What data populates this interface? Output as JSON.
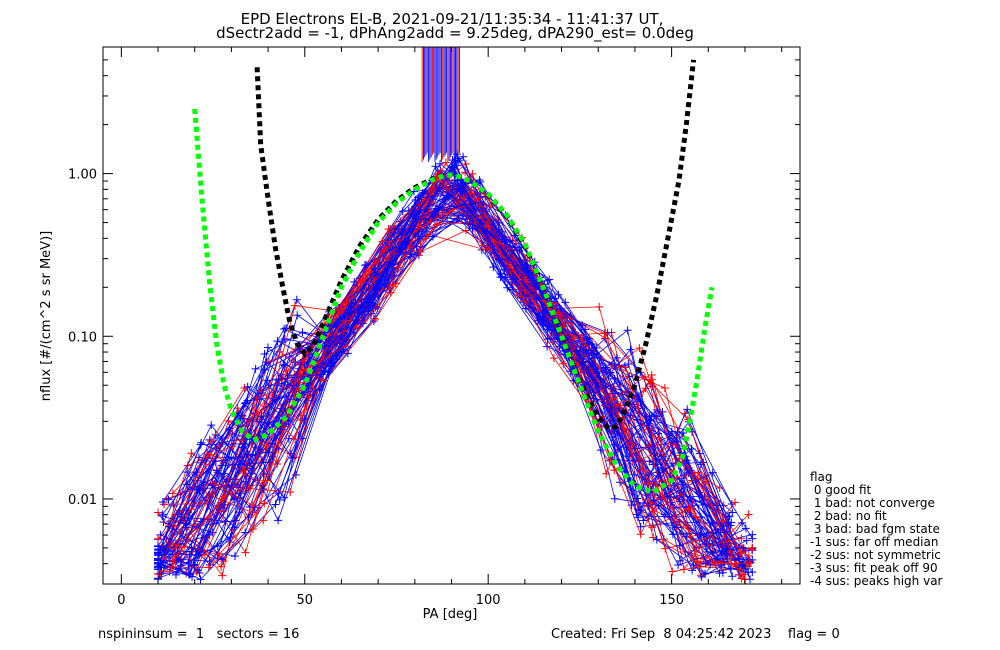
{
  "chart_data": {
    "type": "scatter",
    "title_line1": "EPD Electrons EL-B, 2021-09-21/11:35:34 - 11:41:37 UT,",
    "title_line2": "dSectr2add = -1, dPhAng2add = 9.25deg, dPA290_est=   0.0deg",
    "xlabel": "PA [deg]",
    "ylabel": "nflux [#/(cm^2 s sr MeV)]",
    "xlim": [
      -5,
      185
    ],
    "ylim": [
      0.003,
      6.0
    ],
    "yscale": "log",
    "xticks": [
      0,
      50,
      100,
      150
    ],
    "xtick_labels": [
      "0",
      "50",
      "100",
      "150"
    ],
    "yticks": [
      0.01,
      0.1,
      1.0
    ],
    "ytick_labels": [
      "0.01",
      "0.10",
      "1.00"
    ],
    "grid": false,
    "colors": {
      "red": "#ff0000",
      "blue": "#0000ff",
      "green": "#00ff00",
      "black": "#000000"
    },
    "series": [
      {
        "color": "#000000",
        "style": "dotted-thick",
        "x": [
          37,
          38,
          40,
          42,
          44,
          46,
          48,
          50,
          52,
          55,
          60,
          65,
          70,
          75,
          80,
          85,
          88,
          90,
          92,
          95,
          100,
          105,
          110,
          115,
          120,
          125,
          130,
          133,
          135,
          137,
          140,
          143,
          146,
          149,
          152,
          154,
          156
        ],
        "y": [
          4.5,
          1.5,
          0.7,
          0.35,
          0.2,
          0.12,
          0.09,
          0.078,
          0.085,
          0.12,
          0.22,
          0.36,
          0.52,
          0.68,
          0.82,
          0.93,
          0.97,
          0.98,
          0.96,
          0.9,
          0.74,
          0.55,
          0.36,
          0.2,
          0.1,
          0.052,
          0.032,
          0.027,
          0.028,
          0.034,
          0.05,
          0.09,
          0.18,
          0.4,
          0.9,
          2.0,
          5.0
        ]
      },
      {
        "color": "#00ff00",
        "style": "dotted-thick",
        "x": [
          20,
          22,
          24,
          26,
          28,
          30,
          33,
          36,
          40,
          45,
          50,
          55,
          60,
          65,
          70,
          75,
          80,
          85,
          88,
          90,
          92,
          95,
          100,
          105,
          110,
          115,
          120,
          125,
          130,
          135,
          140,
          145,
          150,
          153,
          155,
          157,
          159,
          161
        ],
        "y": [
          2.5,
          0.7,
          0.22,
          0.09,
          0.05,
          0.035,
          0.026,
          0.023,
          0.025,
          0.032,
          0.05,
          0.1,
          0.2,
          0.33,
          0.5,
          0.66,
          0.8,
          0.92,
          0.97,
          0.98,
          0.96,
          0.9,
          0.75,
          0.56,
          0.37,
          0.2,
          0.1,
          0.05,
          0.026,
          0.016,
          0.012,
          0.011,
          0.013,
          0.018,
          0.03,
          0.055,
          0.11,
          0.2
        ]
      }
    ]
  },
  "footer": {
    "left": "nspininsum =  1   sectors = 16",
    "right": "Created: Fri Sep  8 04:25:42 2023    flag = 0"
  },
  "legend": {
    "title": "flag",
    "items": [
      " 0 good fit",
      " 1 bad: not converge",
      " 2 bad: no fit",
      " 3 bad: bad fgm state",
      "-1 sus: far off median",
      "-2 sus: not symmetric",
      "-3 sus: fit peak off 90",
      "-4 sus: peaks high var"
    ]
  }
}
